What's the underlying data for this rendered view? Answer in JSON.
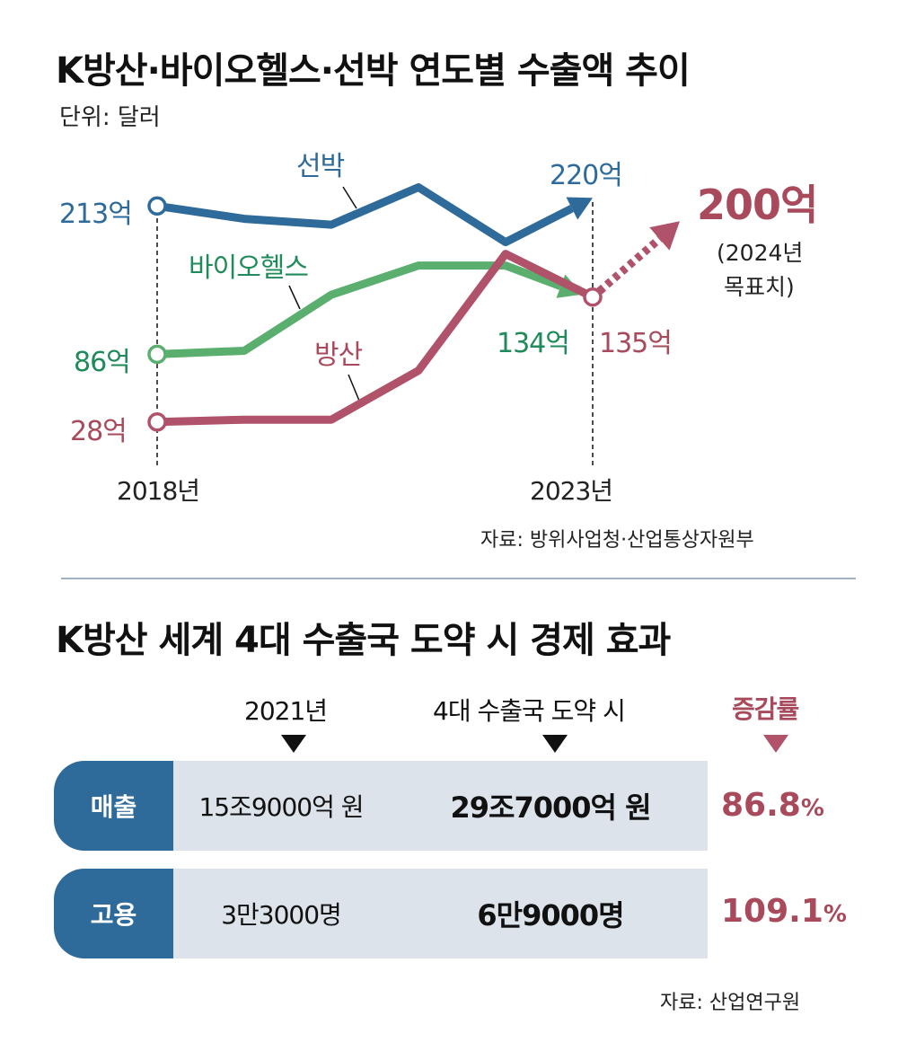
{
  "chart_title": "K방산·바이오헬스·선박 연도별 수출액 추이",
  "unit": "단위: 달러",
  "source1": "자료: 방위사업청·산업통상자원부",
  "chart_data": {
    "type": "line",
    "title": "K방산·바이오헬스·선박 연도별 수출액 추이",
    "ylabel": "단위: 달러 (억)",
    "x": [
      2018,
      2019,
      2020,
      2021,
      2022,
      2023
    ],
    "x_tick_labels": [
      "2018년",
      "2023년"
    ],
    "series": [
      {
        "name": "선박",
        "color": "#2f6b9a",
        "values": [
          213,
          202,
          197,
          229,
          182,
          220
        ],
        "start_label": "213억",
        "end_label": "220억"
      },
      {
        "name": "바이오헬스",
        "color": "#5aae6e",
        "values": [
          86,
          89,
          137,
          162,
          162,
          134
        ],
        "start_label": "86억",
        "end_label": "134억"
      },
      {
        "name": "방산",
        "color": "#b0526a",
        "values": [
          28,
          30,
          30,
          72,
          172,
          135
        ],
        "start_label": "28억",
        "end_label": "135억",
        "target": {
          "x": 2024,
          "value": 200,
          "label": "200억",
          "note": "(2024년 목표치)"
        }
      }
    ]
  },
  "target_note_1": "(2024년",
  "target_note_2": "목표치)",
  "table_title": "K방산 세계 4대 수출국 도약 시 경제 효과",
  "table": {
    "columns": [
      "2021년",
      "4대 수출국 도약 시",
      "증감률"
    ],
    "rows": [
      {
        "label": "매출",
        "y2021": "15조9000억 원",
        "target": "29조7000억 원",
        "rate": "86.8",
        "pct": "%"
      },
      {
        "label": "고용",
        "y2021": "3만3000명",
        "target": "6만9000명",
        "rate": "109.1",
        "pct": "%"
      }
    ]
  },
  "source2": "자료: 산업연구원"
}
